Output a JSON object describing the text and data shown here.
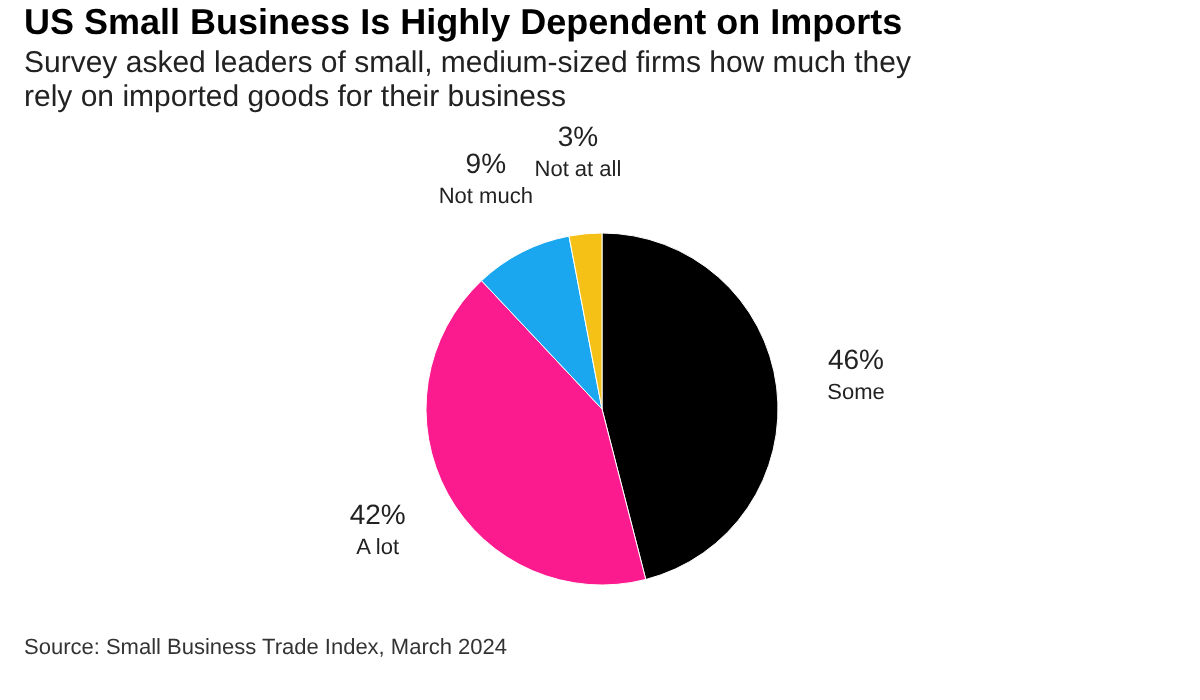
{
  "chart_data": {
    "type": "pie",
    "title": "US Small Business Is Highly Dependent on Imports",
    "subtitle": "Survey asked leaders of small, medium-sized firms how much they rely on imported goods for their business",
    "categories": [
      "Some",
      "A lot",
      "Not much",
      "Not at all"
    ],
    "values": [
      46,
      42,
      9,
      3
    ],
    "colors": [
      "#000000",
      "#fb1b8f",
      "#1aa7f0",
      "#f5c116"
    ],
    "value_labels": [
      "46%",
      "42%",
      "9%",
      "3%"
    ],
    "legend": false,
    "annotations": [
      "Source: Small Business Trade Index, March 2024"
    ]
  }
}
